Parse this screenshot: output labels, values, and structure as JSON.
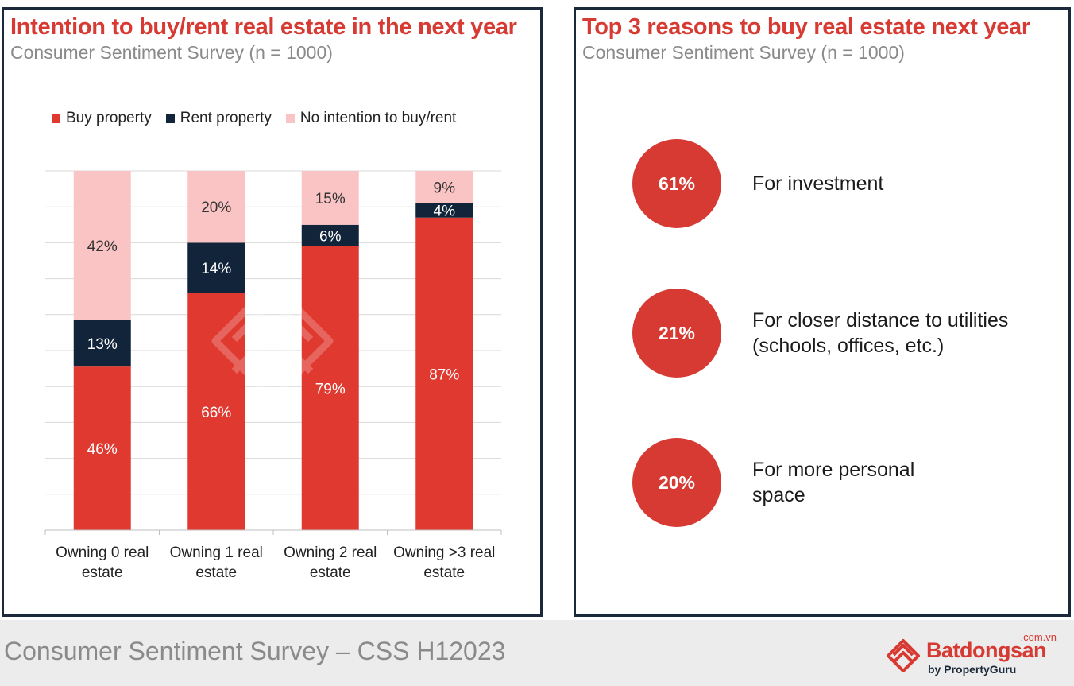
{
  "left": {
    "title": "Intention to buy/rent real estate in the next year",
    "subtitle": "Consumer Sentiment Survey (n = 1000)"
  },
  "right": {
    "title": "Top 3 reasons to buy real estate next year",
    "subtitle": "Consumer Sentiment Survey (n = 1000)",
    "reasons": [
      {
        "percent": "61%",
        "line1": "For investment",
        "line2": ""
      },
      {
        "percent": "21%",
        "line1": "For closer distance to utilities",
        "line2": "(schools, offices, etc.)"
      },
      {
        "percent": "20%",
        "line1": "For more personal",
        "line2": "space"
      }
    ]
  },
  "chart_data": {
    "type": "bar",
    "stacked": true,
    "categories": [
      "Owning 0 real estate",
      "Owning 1 real estate",
      "Owning 2 real estate",
      "Owning >3 real estate"
    ],
    "category_lines": [
      [
        "Owning 0 real",
        "estate"
      ],
      [
        "Owning 1 real",
        "estate"
      ],
      [
        "Owning 2 real",
        "estate"
      ],
      [
        "Owning >3 real",
        "estate"
      ]
    ],
    "series": [
      {
        "name": "Buy property",
        "values": [
          46,
          66,
          79,
          87
        ],
        "color": "#e03a30",
        "label_color": "#ffffff"
      },
      {
        "name": "Rent property",
        "values": [
          13,
          14,
          6,
          4
        ],
        "color": "#12243a",
        "label_color": "#ffffff"
      },
      {
        "name": "No intention to buy/rent",
        "values": [
          42,
          20,
          15,
          9
        ],
        "color": "#fbc4c4",
        "label_color": "#333333"
      }
    ],
    "unit": "%",
    "ylim": [
      0,
      100
    ],
    "grid": true,
    "legend_position": "top"
  },
  "footer": {
    "text": "Consumer Sentiment Survey – CSS H12023",
    "brand_name": "Batdongsan",
    "brand_tld": ".com.vn",
    "brand_sub": "by PropertyGuru"
  }
}
